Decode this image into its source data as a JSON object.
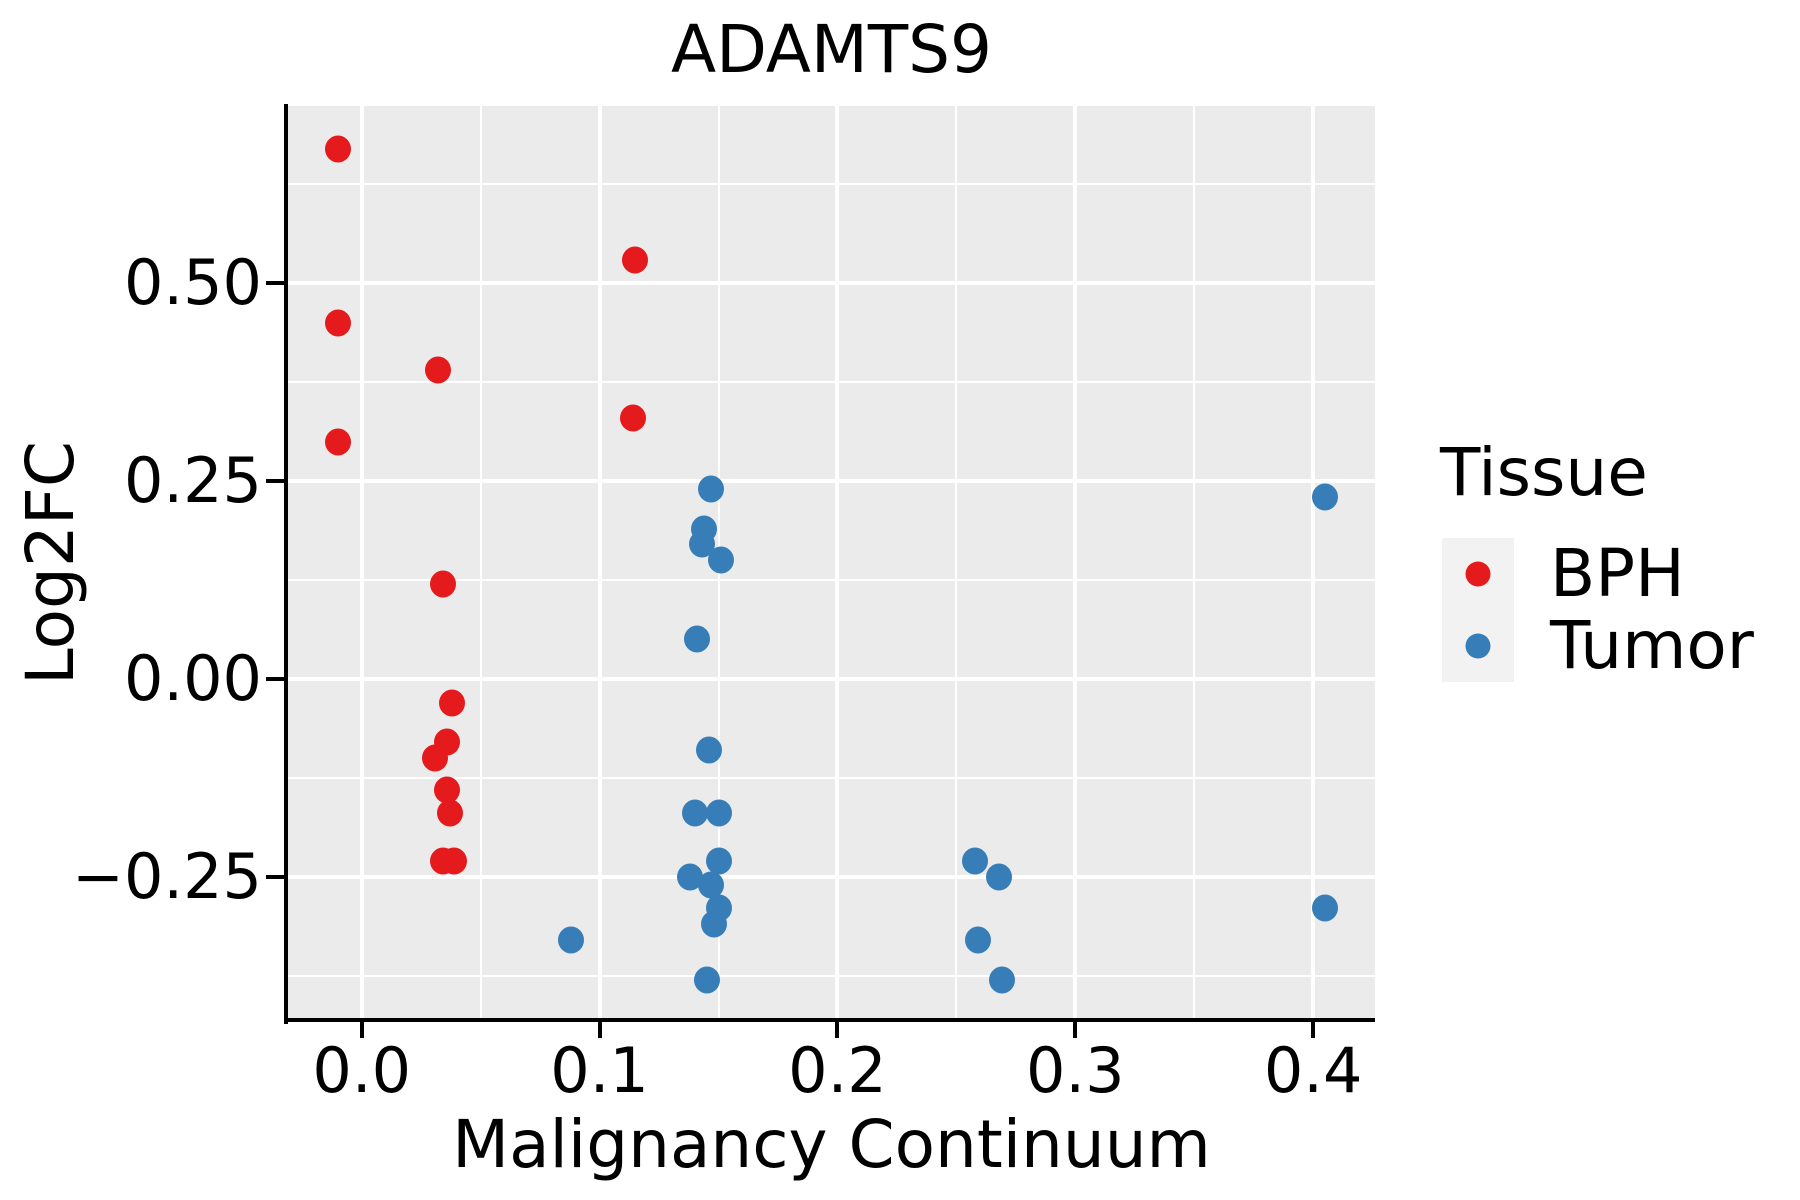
{
  "title": "ADAMTS9",
  "axes": {
    "x": {
      "label": "Malignancy Continuum",
      "ticks": [
        "0.0",
        "0.1",
        "0.2",
        "0.3",
        "0.4"
      ],
      "tick_values": [
        0.0,
        0.1,
        0.2,
        0.3,
        0.4
      ]
    },
    "y": {
      "label": "Log2FC",
      "ticks": [
        "0.50",
        "0.25",
        "0.00",
        "−0.25"
      ],
      "tick_values": [
        0.5,
        0.25,
        0.0,
        -0.25
      ]
    }
  },
  "legend": {
    "title": "Tissue",
    "entries": [
      {
        "label": "BPH",
        "color": "#e41a1c"
      },
      {
        "label": "Tumor",
        "color": "#377eb8"
      }
    ]
  },
  "colors": {
    "panel_background": "#ebebeb",
    "gridline": "#ffffff",
    "spine": "#000000",
    "bph": "#e41a1c",
    "tumor": "#377eb8",
    "legend_key_background": "#f2f2f2"
  },
  "chart_data": {
    "type": "scatter",
    "title": "ADAMTS9",
    "xlabel": "Malignancy Continuum",
    "ylabel": "Log2FC",
    "xlim": [
      -0.031,
      0.426
    ],
    "ylim": [
      -0.431,
      0.724
    ],
    "x_gridline_step": 0.05,
    "y_gridline_step": 0.125,
    "x_major_every": 0.1,
    "y_major_every": 0.25,
    "grid": true,
    "legend_position": "right",
    "legend_title": "Tissue",
    "series": [
      {
        "name": "BPH",
        "color": "#e41a1c",
        "points": [
          [
            -0.01,
            0.67
          ],
          [
            -0.01,
            0.45
          ],
          [
            -0.01,
            0.3
          ],
          [
            0.032,
            0.39
          ],
          [
            0.115,
            0.53
          ],
          [
            0.114,
            0.33
          ],
          [
            0.034,
            0.12
          ],
          [
            0.038,
            -0.03
          ],
          [
            0.036,
            -0.08
          ],
          [
            0.031,
            -0.1
          ],
          [
            0.036,
            -0.14
          ],
          [
            0.037,
            -0.17
          ],
          [
            0.034,
            -0.23
          ],
          [
            0.039,
            -0.23
          ]
        ]
      },
      {
        "name": "Tumor",
        "color": "#377eb8",
        "points": [
          [
            0.147,
            0.24
          ],
          [
            0.144,
            0.19
          ],
          [
            0.143,
            0.17
          ],
          [
            0.151,
            0.15
          ],
          [
            0.141,
            0.05
          ],
          [
            0.146,
            -0.09
          ],
          [
            0.14,
            -0.17
          ],
          [
            0.15,
            -0.17
          ],
          [
            0.15,
            -0.23
          ],
          [
            0.138,
            -0.25
          ],
          [
            0.147,
            -0.26
          ],
          [
            0.15,
            -0.29
          ],
          [
            0.148,
            -0.31
          ],
          [
            0.145,
            -0.38
          ],
          [
            0.088,
            -0.33
          ],
          [
            0.258,
            -0.23
          ],
          [
            0.268,
            -0.25
          ],
          [
            0.259,
            -0.33
          ],
          [
            0.269,
            -0.38
          ],
          [
            0.405,
            0.23
          ],
          [
            0.405,
            -0.29
          ]
        ]
      }
    ]
  }
}
